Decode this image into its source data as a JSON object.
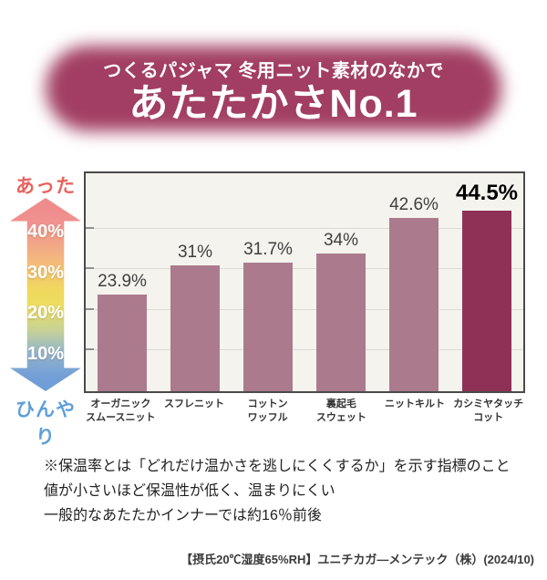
{
  "header": {
    "subtitle": "つくるパジャマ 冬用ニット素材のなかで",
    "title": "あたたかさNo.1",
    "bg_color": "#a23e63",
    "text_color": "#ffffff"
  },
  "axis_arrow": {
    "top_label": "あったか",
    "bottom_label": "ひんやり",
    "tick_labels": [
      "40%",
      "30%",
      "20%",
      "10%"
    ],
    "tick_values": [
      40,
      30,
      20,
      10
    ],
    "warm_color": "#e9625e",
    "cool_color": "#5f9fd9"
  },
  "chart_data": {
    "type": "bar",
    "title": "あたたかさNo.1",
    "categories": [
      "オーガニックスムースニット",
      "スフレニット",
      "コットンワッフル",
      "裏起毛スウェット",
      "ニットキルト",
      "カシミヤタッチコット"
    ],
    "categories_lines": [
      [
        "オーガニック",
        "スムースニット"
      ],
      [
        "スフレニット"
      ],
      [
        "コットン",
        "ワッフル"
      ],
      [
        "裏起毛",
        "スウェット"
      ],
      [
        "ニットキルト"
      ],
      [
        "カシミヤタッチ",
        "コット"
      ]
    ],
    "values": [
      23.9,
      31,
      31.7,
      34,
      42.6,
      44.5
    ],
    "value_labels": [
      "23.9%",
      "31%",
      "31.7%",
      "34%",
      "42.6%",
      "44.5%"
    ],
    "highlight_index": 5,
    "xlabel": "",
    "ylabel": "",
    "ylim": [
      0,
      54
    ],
    "y_gridlines": [
      10,
      20,
      30,
      40
    ],
    "unit": "%",
    "grid": true,
    "legend": false,
    "bar_color": "#ab7b8d",
    "highlight_color": "#8f3156",
    "plot_bg": "#f4f3ee",
    "border_color": "#4a4a4a"
  },
  "footnote": {
    "lines": [
      "※保温率とは「どれだけ温かさを逃しにくくするか」を示す指標のこと",
      "値が小さいほど保温性が低く、温まりにくい",
      "一般的なあたたかインナーでは約16％前後"
    ]
  },
  "source": {
    "text": "【摂氏20℃湿度65%RH】ユニチカガ―メンテック（株）(2024/10)"
  }
}
